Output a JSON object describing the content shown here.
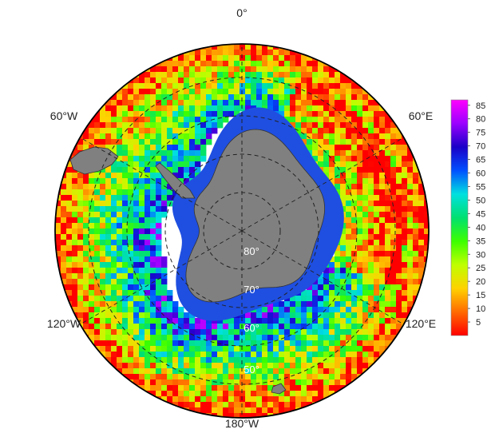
{
  "meridian_labels": {
    "top": "0°",
    "upper_left": "60°W",
    "upper_right": "60°E",
    "lower_left": "120°W",
    "lower_right": "120°E",
    "bottom": "180°W"
  },
  "latitude_labels": [
    "80°",
    "70°",
    "60°",
    "50°"
  ],
  "colorbar": {
    "ticks": [
      "5",
      "10",
      "15",
      "20",
      "25",
      "30",
      "35",
      "40",
      "45",
      "50",
      "55",
      "60",
      "65",
      "70",
      "75",
      "80",
      "85"
    ],
    "min": 0,
    "max": 87,
    "colors": [
      "#ff0000",
      "#ff6a00",
      "#ffd200",
      "#bfff00",
      "#3cff00",
      "#00e070",
      "#00e0e0",
      "#0050ff",
      "#1a00c8",
      "#9a00ff",
      "#ff00ff"
    ]
  },
  "map_colors": {
    "land": "#808080",
    "ice_shelf_ring": "#1f4fe0",
    "grid_line": "#222222",
    "outline": "#000000"
  }
}
